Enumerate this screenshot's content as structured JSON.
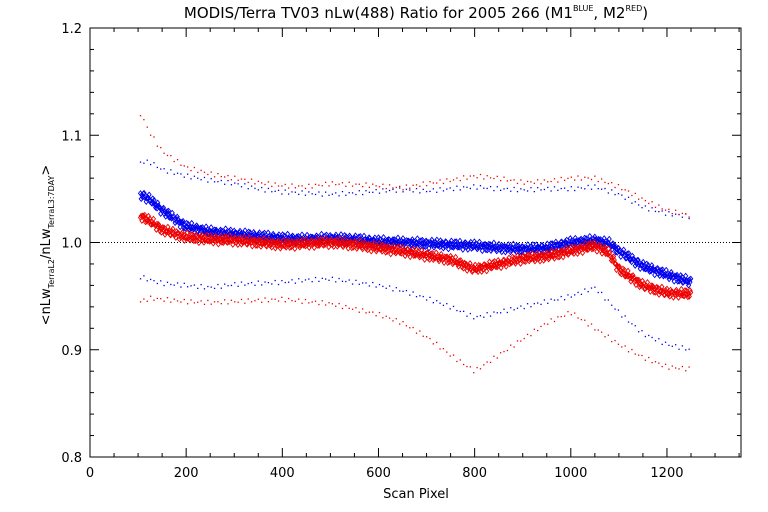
{
  "chart_data": {
    "type": "scatter",
    "title_parts": {
      "prefix": "MODIS/Terra TV03 nLw(488) Ratio for 2005 266 (M1",
      "sup1": "BLUE",
      "mid": ", M2",
      "sup2": "RED",
      "suffix": ")"
    },
    "xlabel": "Scan Pixel",
    "ylabel_parts": {
      "open": "<nLw",
      "sub1": "TerraL2",
      "slash": "/nLw",
      "sub2": "TerraL3:7DAY",
      "close": ">"
    },
    "xlim": [
      0,
      1354
    ],
    "ylim": [
      0.8,
      1.2
    ],
    "xticks": [
      0,
      200,
      400,
      600,
      800,
      1000,
      1200
    ],
    "xtick_labels": [
      "0",
      "200",
      "400",
      "600",
      "800",
      "1000",
      "1200"
    ],
    "yticks": [
      0.8,
      0.9,
      1.0,
      1.1,
      1.2
    ],
    "ytick_labels": [
      "0.8",
      "0.9",
      "1.0",
      "1.1",
      "1.2"
    ],
    "reference_line": {
      "y": 1.0,
      "style": "dotted"
    },
    "colors": {
      "blue": "#0000ee",
      "red": "#ee0000",
      "axis": "#000000"
    },
    "series": [
      {
        "color": "blue",
        "marker": "diamond-dense",
        "x": [
          105,
          125,
          150,
          200,
          250,
          300,
          350,
          400,
          450,
          500,
          550,
          600,
          650,
          700,
          750,
          800,
          850,
          900,
          950,
          1000,
          1050,
          1080,
          1100,
          1150,
          1200,
          1250
        ],
        "y": [
          1.045,
          1.04,
          1.03,
          1.015,
          1.01,
          1.008,
          1.006,
          1.004,
          1.003,
          1.004,
          1.003,
          1.001,
          1.0,
          0.999,
          0.998,
          0.997,
          0.995,
          0.994,
          0.995,
          1.0,
          1.002,
          0.999,
          0.992,
          0.978,
          0.97,
          0.963
        ]
      },
      {
        "color": "red",
        "marker": "diamond-dense",
        "x": [
          105,
          125,
          150,
          200,
          250,
          300,
          350,
          400,
          450,
          500,
          550,
          600,
          650,
          700,
          750,
          800,
          850,
          900,
          950,
          1000,
          1050,
          1080,
          1100,
          1150,
          1200,
          1250
        ],
        "y": [
          1.025,
          1.02,
          1.012,
          1.005,
          1.003,
          1.002,
          1.0,
          0.998,
          0.999,
          1.0,
          0.998,
          0.995,
          0.992,
          0.988,
          0.984,
          0.975,
          0.98,
          0.985,
          0.987,
          0.992,
          0.997,
          0.99,
          0.975,
          0.96,
          0.953,
          0.952
        ]
      },
      {
        "color": "blue",
        "marker": "dot",
        "x": [
          105,
          125,
          150,
          200,
          250,
          300,
          350,
          400,
          450,
          500,
          550,
          600,
          650,
          700,
          750,
          800,
          850,
          900,
          950,
          1000,
          1050,
          1100,
          1150,
          1200,
          1250
        ],
        "y": [
          1.075,
          1.075,
          1.068,
          1.062,
          1.058,
          1.055,
          1.05,
          1.047,
          1.046,
          1.045,
          1.046,
          1.048,
          1.049,
          1.048,
          1.05,
          1.052,
          1.05,
          1.049,
          1.05,
          1.05,
          1.052,
          1.045,
          1.033,
          1.027,
          1.024
        ]
      },
      {
        "color": "red",
        "marker": "dot",
        "x": [
          105,
          125,
          150,
          200,
          250,
          300,
          350,
          400,
          450,
          500,
          550,
          600,
          650,
          700,
          750,
          800,
          850,
          900,
          950,
          1000,
          1050,
          1100,
          1150,
          1200,
          1250
        ],
        "y": [
          1.12,
          1.102,
          1.085,
          1.07,
          1.064,
          1.06,
          1.056,
          1.053,
          1.052,
          1.055,
          1.054,
          1.053,
          1.051,
          1.055,
          1.058,
          1.062,
          1.06,
          1.056,
          1.057,
          1.06,
          1.06,
          1.052,
          1.04,
          1.03,
          1.025
        ]
      },
      {
        "color": "blue",
        "marker": "dot",
        "x": [
          105,
          125,
          150,
          200,
          250,
          300,
          350,
          400,
          450,
          500,
          550,
          600,
          650,
          700,
          750,
          800,
          850,
          900,
          950,
          1000,
          1050,
          1100,
          1150,
          1200,
          1250
        ],
        "y": [
          0.968,
          0.965,
          0.962,
          0.96,
          0.958,
          0.961,
          0.962,
          0.963,
          0.965,
          0.966,
          0.963,
          0.96,
          0.955,
          0.948,
          0.94,
          0.93,
          0.935,
          0.94,
          0.945,
          0.95,
          0.958,
          0.935,
          0.915,
          0.905,
          0.9
        ]
      },
      {
        "color": "red",
        "marker": "dot",
        "x": [
          105,
          125,
          150,
          200,
          250,
          300,
          350,
          400,
          450,
          500,
          550,
          600,
          650,
          700,
          750,
          800,
          850,
          900,
          950,
          1000,
          1050,
          1100,
          1150,
          1200,
          1250
        ],
        "y": [
          0.945,
          0.948,
          0.947,
          0.945,
          0.944,
          0.945,
          0.946,
          0.947,
          0.945,
          0.943,
          0.938,
          0.933,
          0.925,
          0.912,
          0.895,
          0.88,
          0.895,
          0.91,
          0.925,
          0.935,
          0.92,
          0.905,
          0.893,
          0.884,
          0.882
        ]
      }
    ]
  }
}
